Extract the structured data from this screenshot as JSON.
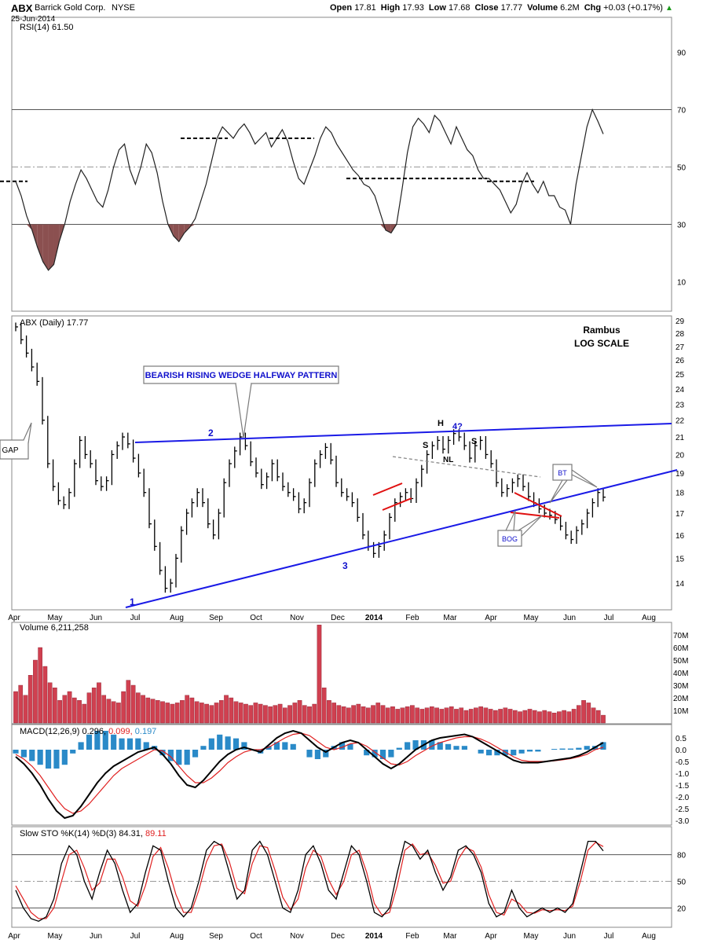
{
  "header": {
    "symbol": "ABX",
    "company": "Barrick Gold Corp.",
    "exchange": "NYSE",
    "date": "25-Jun-2014",
    "open_label": "Open",
    "open": "17.81",
    "high_label": "High",
    "high": "17.93",
    "low_label": "Low",
    "low": "17.68",
    "close_label": "Close",
    "close": "17.77",
    "volume_label": "Volume",
    "volume": "6.2M",
    "chg_label": "Chg",
    "chg": "+0.03 (+0.17%)"
  },
  "colors": {
    "background": "#ffffff",
    "price_bars": "#000000",
    "trendline_blue": "#1a1ae6",
    "pattern_red": "#e01010",
    "rsi_oversold_fill": "#8b5050",
    "volume_up": "#d04050",
    "macd_histogram": "#2a8ac8",
    "signal_red": "#e02020",
    "callout_border": "#7a7a7a",
    "blue_text": "#1010cc"
  },
  "chart_data": [
    {
      "type": "line",
      "panel": "rsi",
      "title": "RSI(14) 61.50",
      "y_ticks": [
        "90",
        "70",
        "50",
        "30",
        "10"
      ],
      "ylim": [
        0,
        100
      ],
      "reference_lines": [
        70,
        50,
        30
      ],
      "series": [
        {
          "name": "RSI(14)",
          "values": [
            45,
            40,
            33,
            28,
            22,
            17,
            14,
            16,
            24,
            30,
            38,
            44,
            49,
            46,
            42,
            38,
            36,
            42,
            50,
            56,
            58,
            49,
            44,
            50,
            58,
            55,
            48,
            38,
            30,
            26,
            24,
            27,
            29,
            32,
            38,
            44,
            52,
            60,
            64,
            62,
            60,
            63,
            65,
            62,
            58,
            60,
            62,
            57,
            60,
            63,
            59,
            52,
            46,
            44,
            49,
            54,
            60,
            64,
            62,
            58,
            55,
            52,
            49,
            47,
            44,
            43,
            40,
            34,
            28,
            27,
            30,
            42,
            55,
            64,
            67,
            65,
            62,
            68,
            66,
            62,
            58,
            64,
            60,
            56,
            54,
            49,
            46,
            46,
            44,
            42,
            38,
            34,
            37,
            44,
            48,
            44,
            41,
            45,
            40,
            40,
            36,
            35,
            30,
            44,
            54,
            64,
            70,
            66,
            61.5
          ]
        }
      ]
    },
    {
      "type": "line",
      "panel": "price",
      "title": "ABX (Daily) 17.77",
      "annotations": [
        "Rambus",
        "LOG SCALE",
        "BEARISH RISING WEDGE HALFWAY PATTERN",
        "GAP",
        "1",
        "2",
        "3",
        "H",
        "4?",
        "S",
        "S",
        "NL",
        "BT",
        "BOG"
      ],
      "x_ticks": [
        "Apr",
        "May",
        "Jun",
        "Jul",
        "Aug",
        "Sep",
        "Oct",
        "Nov",
        "Dec",
        "2014",
        "Feb",
        "Mar",
        "Apr",
        "May",
        "Jun",
        "Jul",
        "Aug"
      ],
      "y_ticks": [
        "29",
        "28",
        "27",
        "26",
        "25",
        "24",
        "23",
        "22",
        "21",
        "20",
        "19",
        "18",
        "17",
        "16",
        "15",
        "14"
      ],
      "ylim": [
        13,
        29
      ],
      "y_scale": "log",
      "series": [
        {
          "name": "ABX",
          "values": [
            28.5,
            27.5,
            26.5,
            25.5,
            24.5,
            22,
            19.5,
            18.3,
            17.6,
            17.4,
            18.0,
            19.5,
            20.8,
            20.0,
            19.5,
            18.6,
            18.3,
            18.6,
            20.0,
            20.5,
            21.0,
            20.6,
            19.8,
            19.0,
            18.0,
            16.5,
            15.5,
            14.5,
            13.8,
            14.0,
            15.0,
            16.2,
            17.0,
            17.5,
            18.0,
            17.5,
            16.5,
            16.0,
            17.0,
            18.5,
            19.5,
            20.2,
            21.0,
            20.5,
            19.6,
            19.0,
            18.4,
            18.8,
            19.5,
            18.8,
            18.3,
            18.0,
            17.8,
            17.2,
            17.5,
            18.5,
            19.5,
            20.0,
            20.4,
            19.7,
            18.5,
            18.0,
            17.8,
            17.5,
            16.8,
            16.0,
            15.5,
            15.2,
            15.5,
            16.0,
            16.8,
            17.5,
            17.8,
            18.0,
            17.7,
            18.5,
            19.2,
            20.0,
            20.5,
            20.8,
            20.3,
            20.8,
            21.2,
            21.0,
            20.5,
            19.8,
            20.5,
            20.8,
            20.0,
            19.5,
            18.5,
            18.0,
            18.2,
            18.5,
            18.7,
            18.3,
            17.8,
            17.5,
            17.2,
            17.0,
            16.9,
            16.7,
            16.4,
            16.0,
            15.8,
            16.2,
            16.5,
            17.0,
            17.5,
            18.0,
            17.77
          ]
        }
      ]
    },
    {
      "type": "bar",
      "panel": "volume",
      "title": "Volume 6,211,258",
      "y_ticks": [
        "70M",
        "60M",
        "50M",
        "40M",
        "30M",
        "20M",
        "10M"
      ],
      "ylim": [
        0,
        75
      ],
      "series": [
        {
          "name": "Volume",
          "values": [
            25,
            30,
            22,
            38,
            50,
            60,
            45,
            32,
            28,
            18,
            22,
            25,
            20,
            18,
            15,
            24,
            28,
            32,
            22,
            19,
            17,
            16,
            25,
            34,
            30,
            24,
            22,
            20,
            19,
            18,
            17,
            16,
            15,
            16,
            18,
            22,
            20,
            17,
            16,
            15,
            14,
            16,
            18,
            22,
            20,
            17,
            16,
            15,
            14,
            16,
            15,
            14,
            13,
            14,
            15,
            12,
            14,
            16,
            18,
            14,
            13,
            15,
            78,
            28,
            18,
            16,
            14,
            13,
            12,
            14,
            15,
            13,
            12,
            14,
            16,
            14,
            12,
            13,
            11,
            12,
            13,
            14,
            12,
            11,
            12,
            13,
            12,
            11,
            12,
            13,
            11,
            12,
            10,
            11,
            12,
            13,
            12,
            11,
            10,
            11,
            12,
            11,
            10,
            9,
            10,
            11,
            10,
            9,
            10,
            9,
            8,
            9,
            10,
            9,
            11,
            14,
            18,
            16,
            12,
            10,
            6.2
          ]
        }
      ]
    },
    {
      "type": "line",
      "panel": "macd",
      "title": "MACD(12,26,9) 0.296, 0.099, 0.197",
      "y_ticks": [
        "0.5",
        "0.0",
        "-0.5",
        "-1.0",
        "-1.5",
        "-2.0",
        "-2.5",
        "-3.0"
      ],
      "ylim": [
        -3.2,
        0.8
      ],
      "series": [
        {
          "name": "MACD",
          "values": [
            -0.3,
            -0.6,
            -1.0,
            -1.5,
            -2.1,
            -2.6,
            -2.9,
            -2.8,
            -2.4,
            -1.9,
            -1.4,
            -1.0,
            -0.7,
            -0.5,
            -0.3,
            -0.1,
            0.0,
            0.1,
            -0.2,
            -0.6,
            -1.1,
            -1.5,
            -1.6,
            -1.3,
            -0.9,
            -0.5,
            -0.2,
            0.0,
            0.1,
            0.0,
            -0.1,
            0.2,
            0.5,
            0.7,
            0.8,
            0.7,
            0.4,
            0.1,
            -0.1,
            0.1,
            0.3,
            0.4,
            0.3,
            0.0,
            -0.3,
            -0.6,
            -0.8,
            -0.6,
            -0.3,
            0.0,
            0.2,
            0.4,
            0.5,
            0.55,
            0.6,
            0.65,
            0.55,
            0.35,
            0.15,
            -0.05,
            -0.25,
            -0.45,
            -0.55,
            -0.55,
            -0.55,
            -0.5,
            -0.45,
            -0.4,
            -0.35,
            -0.25,
            -0.1,
            0.1,
            0.3
          ]
        },
        {
          "name": "signal",
          "values": [
            -0.2,
            -0.4,
            -0.7,
            -1.1,
            -1.6,
            -2.1,
            -2.5,
            -2.7,
            -2.6,
            -2.3,
            -1.9,
            -1.5,
            -1.1,
            -0.8,
            -0.6,
            -0.4,
            -0.2,
            0.0,
            -0.05,
            -0.3,
            -0.7,
            -1.1,
            -1.4,
            -1.4,
            -1.2,
            -0.9,
            -0.55,
            -0.3,
            -0.1,
            0.0,
            0.0,
            0.1,
            0.3,
            0.5,
            0.65,
            0.7,
            0.6,
            0.35,
            0.1,
            0.0,
            0.1,
            0.25,
            0.3,
            0.15,
            -0.1,
            -0.35,
            -0.6,
            -0.65,
            -0.5,
            -0.25,
            -0.05,
            0.15,
            0.3,
            0.4,
            0.5,
            0.55,
            0.55,
            0.45,
            0.3,
            0.1,
            -0.1,
            -0.3,
            -0.45,
            -0.5,
            -0.5,
            -0.5,
            -0.47,
            -0.43,
            -0.38,
            -0.3,
            -0.2,
            0.0,
            0.1
          ]
        },
        {
          "name": "histogram",
          "values": [
            -0.1,
            -0.2,
            -0.3,
            -0.4,
            -0.5,
            -0.5,
            -0.4,
            -0.1,
            0.2,
            0.4,
            0.5,
            0.5,
            0.4,
            0.3,
            0.3,
            0.3,
            0.2,
            0.1,
            -0.15,
            -0.3,
            -0.4,
            -0.4,
            -0.2,
            0.1,
            0.3,
            0.4,
            0.35,
            0.3,
            0.2,
            0.0,
            -0.1,
            0.1,
            0.2,
            0.2,
            0.15,
            0.0,
            -0.2,
            -0.25,
            -0.2,
            0.1,
            0.2,
            0.15,
            0.0,
            -0.15,
            -0.2,
            -0.25,
            -0.2,
            0.05,
            0.2,
            0.25,
            0.25,
            0.25,
            0.2,
            0.15,
            0.1,
            0.1,
            0.0,
            -0.1,
            -0.15,
            -0.15,
            -0.15,
            -0.15,
            -0.1,
            -0.05,
            -0.05,
            0.0,
            0.02,
            0.03,
            0.03,
            0.05,
            0.1,
            0.1,
            0.2
          ]
        }
      ]
    },
    {
      "type": "line",
      "panel": "stochastic",
      "title": "Slow STO %K(14) %D(3) 84.31, 89.11",
      "y_ticks": [
        "80",
        "50",
        "20"
      ],
      "ylim": [
        0,
        100
      ],
      "reference_lines": [
        80,
        50,
        20
      ],
      "series": [
        {
          "name": "%K",
          "values": [
            40,
            20,
            8,
            5,
            10,
            30,
            70,
            90,
            80,
            50,
            30,
            60,
            85,
            70,
            40,
            15,
            25,
            60,
            90,
            85,
            50,
            20,
            10,
            20,
            50,
            85,
            95,
            90,
            60,
            30,
            40,
            85,
            95,
            80,
            50,
            20,
            15,
            40,
            80,
            90,
            70,
            40,
            30,
            60,
            90,
            80,
            50,
            15,
            10,
            20,
            60,
            95,
            90,
            75,
            85,
            60,
            40,
            55,
            85,
            90,
            80,
            60,
            25,
            10,
            15,
            40,
            20,
            10,
            15,
            20,
            15,
            20,
            15,
            25,
            60,
            95,
            95,
            84.31
          ]
        },
        {
          "name": "%D",
          "values": [
            45,
            30,
            15,
            8,
            8,
            20,
            50,
            80,
            85,
            65,
            40,
            48,
            75,
            75,
            55,
            28,
            22,
            45,
            78,
            88,
            65,
            35,
            15,
            15,
            40,
            72,
            90,
            92,
            72,
            42,
            36,
            70,
            90,
            88,
            62,
            32,
            18,
            30,
            65,
            85,
            78,
            52,
            35,
            50,
            80,
            85,
            60,
            25,
            12,
            15,
            45,
            85,
            92,
            80,
            82,
            68,
            48,
            50,
            75,
            88,
            84,
            66,
            35,
            15,
            12,
            30,
            25,
            15,
            14,
            18,
            17,
            18,
            17,
            22,
            50,
            85,
            94,
            89.11
          ]
        }
      ]
    }
  ]
}
